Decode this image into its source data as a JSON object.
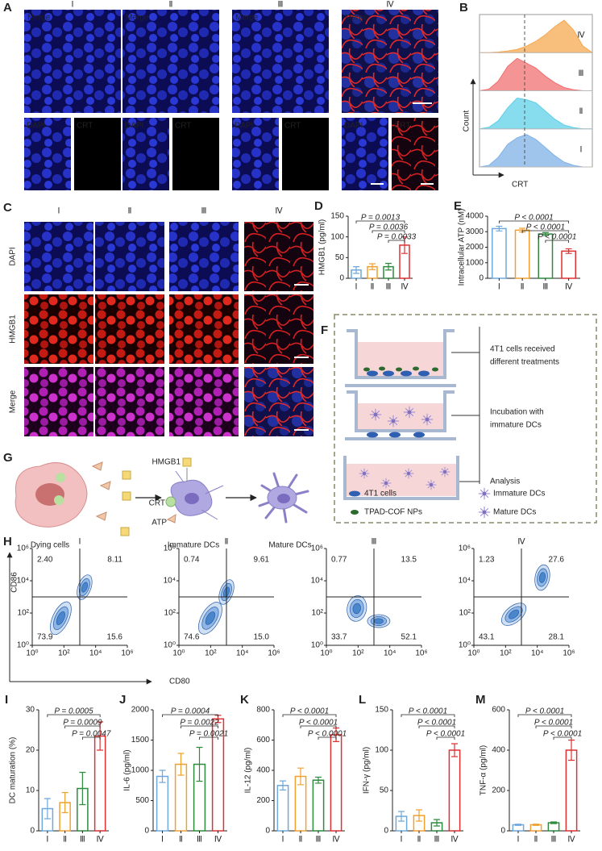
{
  "panel_a": {
    "letter": "A",
    "columns": [
      "Ⅰ",
      "Ⅱ",
      "Ⅲ",
      "Ⅳ"
    ],
    "main_label": "Merge",
    "sub_labels": [
      "DAPI",
      "CRT"
    ]
  },
  "panel_c": {
    "letter": "C",
    "columns": [
      "Ⅰ",
      "Ⅱ",
      "Ⅲ",
      "Ⅳ"
    ],
    "rows": [
      "DAPI",
      "HMGB1",
      "Merge"
    ]
  },
  "panel_f": {
    "letter": "F",
    "steps": [
      [
        "4T1 cells received",
        "different treatments"
      ],
      [
        "Incubation with",
        "immature DCs"
      ],
      [
        "Analysis"
      ]
    ],
    "legend": [
      "4T1 cells",
      "TPAD-COF NPs",
      "Immature DCs",
      "Mature DCs"
    ]
  },
  "panel_g": {
    "letter": "G",
    "signals": [
      "HMGB1",
      "CRT",
      "ATP"
    ],
    "stages": [
      "Dying cells",
      "Immature DCs",
      "Mature DCs"
    ]
  },
  "panel_h": {
    "letter": "H",
    "columns": [
      "Ⅰ",
      "Ⅱ",
      "Ⅲ",
      "Ⅳ"
    ],
    "y_label": "CD86",
    "x_label": "CD80",
    "log": true,
    "xlim": [
      1,
      1000000
    ],
    "ylim": [
      1,
      1000000
    ],
    "ticks": [
      {
        "value": 1,
        "label": "10⁰"
      },
      {
        "value": 100,
        "label": "10²"
      },
      {
        "value": 10000,
        "label": "10⁴"
      },
      {
        "value": 1000000,
        "label": "10⁶"
      }
    ],
    "quadrants": [
      [
        "2.40",
        "8.11",
        "73.9",
        "15.6"
      ],
      [
        "0.74",
        "9.61",
        "74.6",
        "15.0"
      ],
      [
        "0.77",
        "13.5",
        "33.7",
        "52.1"
      ],
      [
        "1.23",
        "27.6",
        "43.1",
        "28.1"
      ]
    ]
  },
  "chart_data": [
    {
      "letter": "B",
      "type": "density",
      "y_label": "Count",
      "x_label": "CRT",
      "series": [
        {
          "name": "Ⅰ",
          "color": "#7fb2e5",
          "values": [
            0,
            0.05,
            0.3,
            0.7,
            0.9,
            1,
            0.85,
            0.6,
            0.35,
            0.15,
            0.05,
            0,
            0
          ]
        },
        {
          "name": "Ⅱ",
          "color": "#5fd0e8",
          "values": [
            0,
            0.05,
            0.25,
            0.65,
            0.95,
            0.9,
            0.8,
            0.55,
            0.3,
            0.12,
            0.04,
            0,
            0
          ]
        },
        {
          "name": "Ⅲ",
          "color": "#f07070",
          "values": [
            0,
            0.05,
            0.3,
            0.75,
            1,
            0.85,
            0.7,
            0.45,
            0.25,
            0.1,
            0.03,
            0,
            0
          ]
        },
        {
          "name": "Ⅳ",
          "color": "#f5a850",
          "values": [
            0,
            0,
            0.02,
            0.05,
            0.1,
            0.2,
            0.35,
            0.55,
            0.8,
            1,
            0.7,
            0.2,
            0
          ]
        }
      ]
    },
    {
      "letter": "D",
      "type": "bar",
      "y_label": "HMGB1 (pg/ml)",
      "categories": [
        "Ⅰ",
        "Ⅱ",
        "Ⅲ",
        "Ⅳ"
      ],
      "colors": [
        "#6fa8dc",
        "#f0a030",
        "#2e8b3e",
        "#e03030"
      ],
      "values": [
        20,
        28,
        28,
        80
      ],
      "errors": [
        8,
        7,
        8,
        20
      ],
      "ylim": [
        0,
        150
      ],
      "yticks": [
        0,
        50,
        100,
        150
      ],
      "comparisons": [
        "P = 0.0013",
        "P = 0.0036",
        "P = 0.0033"
      ]
    },
    {
      "letter": "E",
      "type": "bar",
      "y_label": "Intracellular ATP (nM)",
      "categories": [
        "Ⅰ",
        "Ⅱ",
        "Ⅲ",
        "Ⅳ"
      ],
      "colors": [
        "#6fa8dc",
        "#f0a030",
        "#2e8b3e",
        "#e03030"
      ],
      "values": [
        3200,
        3100,
        2850,
        1750
      ],
      "errors": [
        150,
        120,
        100,
        150
      ],
      "ylim": [
        0,
        4000
      ],
      "yticks": [
        0,
        1000,
        2000,
        3000,
        4000
      ],
      "comparisons": [
        "P < 0.0001",
        "P < 0.0001",
        "P < 0.0001"
      ]
    },
    {
      "letter": "I",
      "type": "bar",
      "y_label": "DC maturation (%)",
      "categories": [
        "Ⅰ",
        "Ⅱ",
        "Ⅲ",
        "Ⅳ"
      ],
      "colors": [
        "#6fa8dc",
        "#f0a030",
        "#2e8b3e",
        "#e03030"
      ],
      "values": [
        5.5,
        7,
        10.5,
        23.5
      ],
      "errors": [
        2.5,
        2.5,
        4,
        3.5
      ],
      "ylim": [
        0,
        30
      ],
      "yticks": [
        0,
        10,
        20,
        30
      ],
      "comparisons": [
        "P = 0.0005",
        "P = 0.0009",
        "P = 0.0047"
      ]
    },
    {
      "letter": "J",
      "type": "bar",
      "y_label": "IL-6 (pg/ml)",
      "categories": [
        "Ⅰ",
        "Ⅱ",
        "Ⅲ",
        "Ⅳ"
      ],
      "colors": [
        "#6fa8dc",
        "#f0a030",
        "#2e8b3e",
        "#e03030"
      ],
      "values": [
        900,
        1100,
        1100,
        1850
      ],
      "errors": [
        100,
        180,
        280,
        60
      ],
      "ylim": [
        0,
        2000
      ],
      "yticks": [
        0,
        500,
        1000,
        1500,
        2000
      ],
      "comparisons": [
        "P = 0.0004",
        "P = 0.0022",
        "P = 0.0021"
      ]
    },
    {
      "letter": "K",
      "type": "bar",
      "y_label": "IL-12 (pg/ml)",
      "categories": [
        "Ⅰ",
        "Ⅱ",
        "Ⅲ",
        "Ⅳ"
      ],
      "colors": [
        "#6fa8dc",
        "#f0a030",
        "#2e8b3e",
        "#e03030"
      ],
      "values": [
        300,
        360,
        335,
        635
      ],
      "errors": [
        30,
        55,
        20,
        45
      ],
      "ylim": [
        0,
        800
      ],
      "yticks": [
        0,
        200,
        400,
        600,
        800
      ],
      "comparisons": [
        "P < 0.0001",
        "P < 0.0001",
        "P < 0.0001"
      ]
    },
    {
      "letter": "L",
      "type": "bar",
      "y_label": "IFN-γ (pg/ml)",
      "categories": [
        "Ⅰ",
        "Ⅱ",
        "Ⅲ",
        "Ⅳ"
      ],
      "colors": [
        "#6fa8dc",
        "#f0a030",
        "#2e8b3e",
        "#e03030"
      ],
      "values": [
        18,
        19,
        10,
        100
      ],
      "errors": [
        6,
        7,
        4,
        8
      ],
      "ylim": [
        0,
        150
      ],
      "yticks": [
        0,
        50,
        100,
        150
      ],
      "comparisons": [
        "P < 0.0001",
        "P < 0.0001",
        "P < 0.0001"
      ]
    },
    {
      "letter": "M",
      "type": "bar",
      "y_label": "TNF-α (pg/ml)",
      "categories": [
        "Ⅰ",
        "Ⅱ",
        "Ⅲ",
        "Ⅳ"
      ],
      "colors": [
        "#6fa8dc",
        "#f0a030",
        "#2e8b3e",
        "#e03030"
      ],
      "values": [
        30,
        30,
        40,
        400
      ],
      "errors": [
        3,
        3,
        4,
        50
      ],
      "ylim": [
        0,
        600
      ],
      "yticks": [
        0,
        200,
        400,
        600
      ],
      "comparisons": [
        "P < 0.0001",
        "P < 0.0001",
        "P < 0.0001"
      ]
    }
  ]
}
